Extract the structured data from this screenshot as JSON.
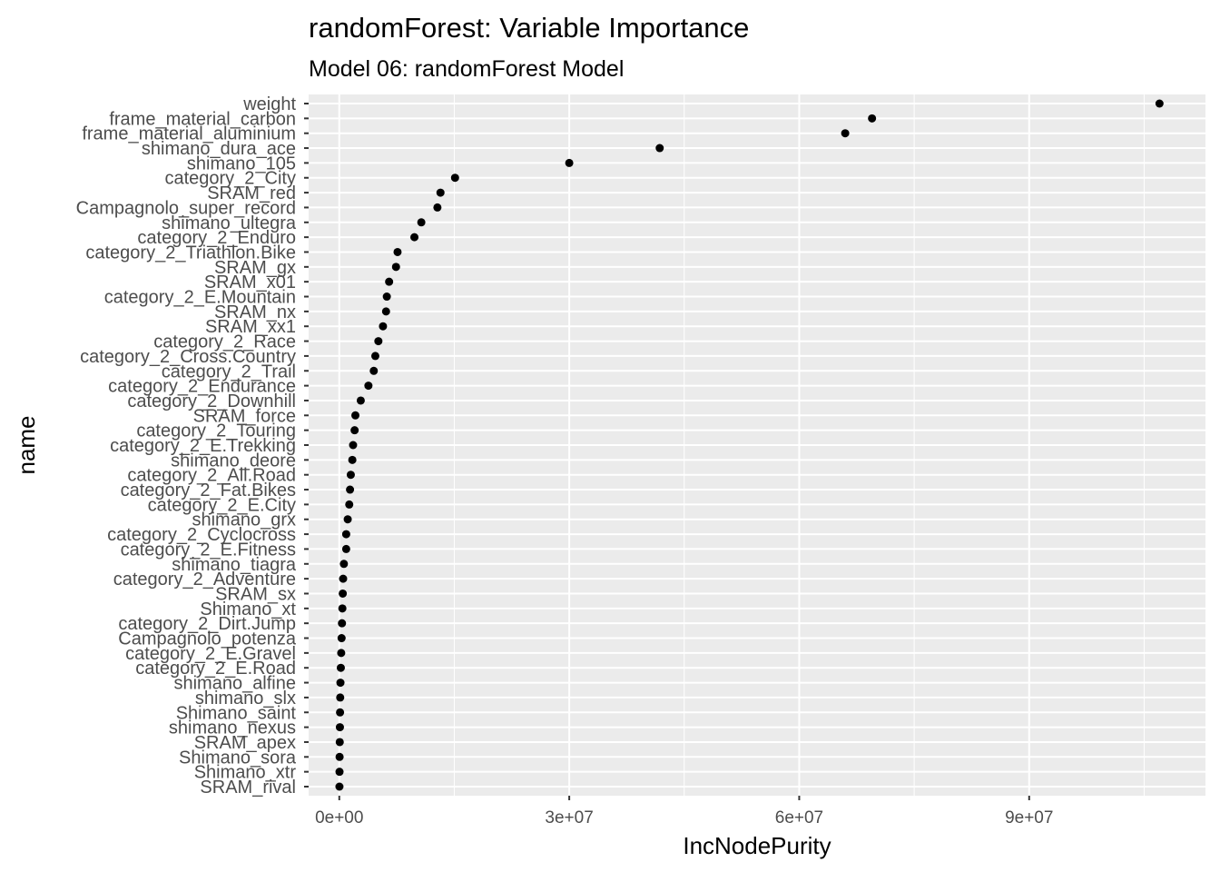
{
  "chart_data": {
    "type": "scatter",
    "title": "randomForest: Variable Importance",
    "subtitle": "Model 06: randomForest Model",
    "xlabel": "IncNodePurity",
    "ylabel": "name",
    "xlim": [
      -4000000,
      113000000
    ],
    "x_ticks": [
      0,
      30000000,
      60000000,
      90000000
    ],
    "x_tick_labels": [
      "0e+00",
      "3e+07",
      "6e+07",
      "9e+07"
    ],
    "grid": true,
    "colors": {
      "panel_bg": "#ebebeb",
      "grid": "#ffffff",
      "point": "#000000",
      "tick_text": "#4d4d4d"
    },
    "categories": [
      "weight",
      "frame_material_carbon",
      "frame_material_aluminium",
      "shimano_dura_ace",
      "shimano_105",
      "category_2_City",
      "SRAM_red",
      "Campagnolo_super_record",
      "shimano_ultegra",
      "category_2_Enduro",
      "category_2_Triathlon.Bike",
      "SRAM_gx",
      "SRAM_x01",
      "category_2_E.Mountain",
      "SRAM_nx",
      "SRAM_xx1",
      "category_2_Race",
      "category_2_Cross.Country",
      "category_2_Trail",
      "category_2_Endurance",
      "category_2_Downhill",
      "SRAM_force",
      "category_2_Touring",
      "category_2_E.Trekking",
      "shimano_deore",
      "category_2_All.Road",
      "category_2_Fat.Bikes",
      "category_2_E.City",
      "shimano_grx",
      "category_2_Cyclocross",
      "category_2_E.Fitness",
      "shimano_tiagra",
      "category_2_Adventure",
      "SRAM_sx",
      "Shimano_xt",
      "category_2_Dirt.Jump",
      "Campagnolo_potenza",
      "category_2_E.Gravel",
      "category_2_E.Road",
      "shimano_alfine",
      "shimano_slx",
      "Shimano_saint",
      "shimano_nexus",
      "SRAM_apex",
      "Shimano_sora",
      "Shimano_xtr",
      "SRAM_rival"
    ],
    "values": [
      107000000,
      69500000,
      66000000,
      41800000,
      30000000,
      15100000,
      13200000,
      12800000,
      10700000,
      9800000,
      7600000,
      7400000,
      6500000,
      6200000,
      6100000,
      5700000,
      5100000,
      4700000,
      4500000,
      3800000,
      2800000,
      2100000,
      2000000,
      1800000,
      1700000,
      1500000,
      1400000,
      1300000,
      1100000,
      900000,
      900000,
      600000,
      500000,
      450000,
      400000,
      350000,
      300000,
      250000,
      200000,
      150000,
      120000,
      100000,
      80000,
      60000,
      40000,
      30000,
      20000
    ]
  }
}
